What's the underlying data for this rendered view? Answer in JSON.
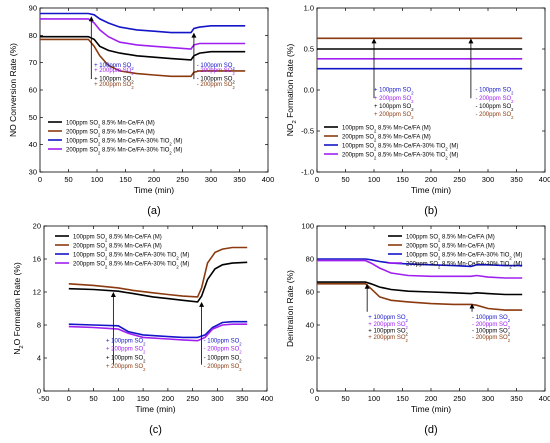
{
  "chart_data": [
    {
      "id": "a",
      "panel_label": "(a)",
      "type": "line",
      "title": "",
      "xlabel": "Time (min)",
      "ylabel": "NO Conversion Rate (%)",
      "xlim": [
        0,
        400
      ],
      "ylim": [
        30,
        90
      ],
      "xticks": [
        0,
        50,
        100,
        150,
        200,
        250,
        300,
        350,
        400
      ],
      "yticks": [
        30,
        40,
        50,
        60,
        70,
        80,
        90
      ],
      "grid": false,
      "series": [
        {
          "name": "100ppm SO₂ 8.5% Mn-Ce/FA (M)",
          "color": "#000000",
          "x": [
            0,
            85,
            95,
            105,
            120,
            140,
            170,
            200,
            230,
            265,
            270,
            280,
            300,
            360
          ],
          "y": [
            79.5,
            79.5,
            78.5,
            76.0,
            74.5,
            73.5,
            72.5,
            72.0,
            71.5,
            71.0,
            72.5,
            73.5,
            74.0,
            74.0
          ]
        },
        {
          "name": "200ppm SO₂ 8.5% Mn-Ce/FA (M)",
          "color": "#8b3a0f",
          "x": [
            0,
            85,
            95,
            105,
            120,
            140,
            170,
            200,
            230,
            265,
            270,
            280,
            300,
            360
          ],
          "y": [
            78.5,
            78.5,
            76.0,
            72.5,
            69.0,
            67.0,
            66.0,
            65.5,
            65.0,
            65.0,
            66.5,
            67.0,
            67.0,
            67.0
          ]
        },
        {
          "name": "100ppm SO₂ 8.5% Mn-Ce/FA-30% TiO₂ (M)",
          "color": "#1515c8",
          "x": [
            0,
            85,
            95,
            105,
            120,
            140,
            170,
            200,
            230,
            265,
            270,
            280,
            300,
            360
          ],
          "y": [
            88.0,
            88.0,
            87.5,
            86.0,
            84.5,
            83.0,
            82.0,
            81.5,
            81.0,
            81.0,
            82.5,
            83.0,
            83.5,
            83.5
          ]
        },
        {
          "name": "200ppm SO₂ 8.5% Mn-Ce/FA-30% TiO₂ (M)",
          "color": "#a020f0",
          "x": [
            0,
            85,
            95,
            105,
            120,
            140,
            170,
            200,
            230,
            265,
            270,
            280,
            300,
            360
          ],
          "y": [
            86.0,
            86.0,
            84.5,
            82.0,
            79.5,
            77.5,
            76.5,
            76.0,
            75.5,
            75.0,
            76.5,
            77.0,
            77.0,
            77.0
          ]
        }
      ],
      "arrows": [
        {
          "x": 90,
          "y0": 64,
          "y1": 87
        },
        {
          "x": 270,
          "y0": 64,
          "y1": 81
        }
      ],
      "annotations_left": [
        {
          "text": "+ 100ppm SO₂",
          "color": "#1515c8",
          "x": 95,
          "y": 68.5
        },
        {
          "text": "+ 200ppm SO₂",
          "color": "#a020f0",
          "x": 95,
          "y": 66.5
        },
        {
          "text": "+ 100ppm SO₂",
          "color": "#000000",
          "x": 95,
          "y": 63.5
        },
        {
          "text": "+ 200ppm SO₂",
          "color": "#8b3a0f",
          "x": 95,
          "y": 61.5
        }
      ],
      "annotations_right": [
        {
          "text": "- 100ppm SO₂",
          "color": "#1515c8",
          "x": 275,
          "y": 68.5
        },
        {
          "text": "- 200ppm SO₂",
          "color": "#a020f0",
          "x": 275,
          "y": 66.5
        },
        {
          "text": "- 100ppm SO₂",
          "color": "#000000",
          "x": 275,
          "y": 63.5
        },
        {
          "text": "- 200ppm SO₂",
          "color": "#8b3a0f",
          "x": 275,
          "y": 61.5
        }
      ],
      "legend_pos": "lower-left"
    },
    {
      "id": "b",
      "panel_label": "(b)",
      "type": "line",
      "title": "",
      "xlabel": "Time (min)",
      "ylabel": "NO₂ Formation Rate (%)",
      "xlim": [
        0,
        400
      ],
      "ylim": [
        -1.0,
        1.0
      ],
      "xticks": [
        0,
        50,
        100,
        150,
        200,
        250,
        300,
        350,
        400
      ],
      "yticks": [
        -1.0,
        -0.5,
        0.0,
        0.5,
        1.0
      ],
      "grid": false,
      "series": [
        {
          "name": "100ppm SO₂ 8.5% Mn-Ce/FA (M)",
          "color": "#000000",
          "x": [
            0,
            360
          ],
          "y": [
            0.5,
            0.5
          ]
        },
        {
          "name": "200ppm SO₂ 8.5% Mn-Ce/FA (M)",
          "color": "#8b3a0f",
          "x": [
            0,
            360
          ],
          "y": [
            0.63,
            0.63
          ]
        },
        {
          "name": "100ppm SO₂ 8.5% Mn-Ce/FA-30% TiO₂ (M)",
          "color": "#1515c8",
          "x": [
            0,
            360
          ],
          "y": [
            0.26,
            0.26
          ]
        },
        {
          "name": "200ppm SO₂ 8.5% Mn-Ce/FA-30% TiO₂ (M)",
          "color": "#a020f0",
          "x": [
            0,
            360
          ],
          "y": [
            0.38,
            0.38
          ]
        }
      ],
      "arrows": [
        {
          "x": 100,
          "y0": -0.1,
          "y1": 0.63
        },
        {
          "x": 270,
          "y0": -0.1,
          "y1": 0.63
        }
      ],
      "annotations_left": [
        {
          "text": "+ 100ppm SO₂",
          "color": "#1515c8",
          "x": 100,
          "y": -0.02
        },
        {
          "text": "+ 200ppm SO₂",
          "color": "#a020f0",
          "x": 100,
          "y": -0.12
        },
        {
          "text": "+ 100ppm SO₂",
          "color": "#000000",
          "x": 100,
          "y": -0.22
        },
        {
          "text": "+ 200ppm SO₂",
          "color": "#8b3a0f",
          "x": 100,
          "y": -0.32
        }
      ],
      "annotations_right": [
        {
          "text": "- 100ppm SO₂",
          "color": "#1515c8",
          "x": 278,
          "y": -0.02
        },
        {
          "text": "- 200ppm SO₂",
          "color": "#a020f0",
          "x": 278,
          "y": -0.12
        },
        {
          "text": "- 100ppm SO₂",
          "color": "#000000",
          "x": 278,
          "y": -0.22
        },
        {
          "text": "- 200ppm SO₂",
          "color": "#8b3a0f",
          "x": 278,
          "y": -0.32
        }
      ],
      "legend_pos": "lower-left"
    },
    {
      "id": "c",
      "panel_label": "(c)",
      "type": "line",
      "title": "",
      "xlabel": "Time (min)",
      "ylabel": "N₂O Formation Rate (%)",
      "xlim": [
        -50,
        400
      ],
      "ylim": [
        0,
        20
      ],
      "xticks": [
        -50,
        0,
        50,
        100,
        150,
        200,
        250,
        300,
        350,
        400
      ],
      "yticks": [
        0,
        4,
        8,
        12,
        16,
        20
      ],
      "grid": false,
      "series": [
        {
          "name": "100ppm SO₂ 8.5% Mn-Ce/FA (M)",
          "color": "#000000",
          "x": [
            0,
            50,
            100,
            130,
            170,
            200,
            230,
            260,
            268,
            280,
            295,
            310,
            330,
            360
          ],
          "y": [
            12.4,
            12.3,
            12.1,
            11.8,
            11.4,
            11.2,
            11.0,
            10.8,
            11.5,
            13.5,
            14.8,
            15.3,
            15.5,
            15.6
          ]
        },
        {
          "name": "200ppm SO₂ 8.5% Mn-Ce/FA (M)",
          "color": "#8b3a0f",
          "x": [
            0,
            50,
            100,
            130,
            170,
            200,
            230,
            260,
            268,
            280,
            295,
            310,
            330,
            360
          ],
          "y": [
            13.0,
            12.8,
            12.5,
            12.2,
            11.9,
            11.7,
            11.5,
            11.4,
            12.5,
            15.5,
            16.8,
            17.2,
            17.4,
            17.4
          ]
        },
        {
          "name": "100ppm SO₂ 8.5% Mn-Ce/FA-30% TiO₂ (M)",
          "color": "#1515c8",
          "x": [
            0,
            50,
            100,
            120,
            150,
            200,
            230,
            260,
            275,
            290,
            310,
            330,
            360
          ],
          "y": [
            8.1,
            8.0,
            7.9,
            7.2,
            6.8,
            6.6,
            6.5,
            6.5,
            6.8,
            7.7,
            8.3,
            8.4,
            8.4
          ]
        },
        {
          "name": "200ppm SO₂ 8.5% Mn-Ce/FA-30% TiO₂ (M)",
          "color": "#a020f0",
          "x": [
            0,
            50,
            100,
            120,
            150,
            200,
            230,
            260,
            275,
            290,
            310,
            330,
            360
          ],
          "y": [
            7.8,
            7.7,
            7.5,
            7.0,
            6.5,
            6.3,
            6.2,
            6.1,
            6.5,
            7.5,
            8.0,
            8.1,
            8.1
          ]
        }
      ],
      "arrows": [
        {
          "x": 90,
          "y0": 3.2,
          "y1": 12.0
        },
        {
          "x": 268,
          "y0": 3.2,
          "y1": 10.8
        }
      ],
      "annotations_left": [
        {
          "text": "+ 100ppm SO₂",
          "color": "#1515c8",
          "x": 75,
          "y": 5.9
        },
        {
          "text": "+ 200ppm SO₂",
          "color": "#a020f0",
          "x": 75,
          "y": 4.9
        },
        {
          "text": "+ 100ppm SO₂",
          "color": "#000000",
          "x": 75,
          "y": 3.8
        },
        {
          "text": "+ 200ppm SO₂",
          "color": "#8b3a0f",
          "x": 75,
          "y": 2.8
        }
      ],
      "annotations_right": [
        {
          "text": "- 100ppm SO₂",
          "color": "#1515c8",
          "x": 272,
          "y": 5.9
        },
        {
          "text": "- 200ppm SO₂",
          "color": "#a020f0",
          "x": 272,
          "y": 4.9
        },
        {
          "text": "- 100ppm SO₂",
          "color": "#000000",
          "x": 272,
          "y": 3.8
        },
        {
          "text": "- 200ppm SO₂",
          "color": "#8b3a0f",
          "x": 272,
          "y": 2.8
        }
      ],
      "legend_pos": "top-left"
    },
    {
      "id": "d",
      "panel_label": "(d)",
      "type": "line",
      "title": "",
      "xlabel": "Time (min)",
      "ylabel": "Denitration Rate (%)",
      "xlim": [
        0,
        400
      ],
      "ylim": [
        0,
        100
      ],
      "xticks": [
        0,
        50,
        100,
        150,
        200,
        250,
        300,
        350,
        400
      ],
      "yticks": [
        0,
        20,
        40,
        60,
        80,
        100
      ],
      "grid": false,
      "series": [
        {
          "name": "100ppm SO₂ 8.5% Mn-Ce/FA (M)",
          "color": "#000000",
          "x": [
            0,
            85,
            95,
            110,
            130,
            160,
            200,
            240,
            270,
            280,
            300,
            330,
            360
          ],
          "y": [
            66.0,
            66.0,
            65.0,
            63.0,
            61.5,
            60.5,
            60.0,
            59.5,
            59.0,
            59.5,
            59.0,
            58.5,
            58.5
          ]
        },
        {
          "name": "200ppm SO₂ 8.5% Mn-Ce/FA (M)",
          "color": "#8b3a0f",
          "x": [
            0,
            85,
            95,
            110,
            130,
            160,
            200,
            240,
            270,
            280,
            300,
            330,
            360
          ],
          "y": [
            65.0,
            65.0,
            62.0,
            57.0,
            55.0,
            54.0,
            53.0,
            52.5,
            52.5,
            52.0,
            50.0,
            49.0,
            49.0
          ]
        },
        {
          "name": "100ppm SO₂ 8.5% Mn-Ce/FA-30% TiO₂ (M)",
          "color": "#1515c8",
          "x": [
            0,
            85,
            95,
            110,
            130,
            160,
            200,
            240,
            270,
            280,
            300,
            330,
            360
          ],
          "y": [
            80.0,
            80.0,
            79.5,
            78.5,
            77.5,
            77.0,
            76.5,
            76.0,
            75.5,
            76.5,
            76.5,
            76.0,
            76.0
          ]
        },
        {
          "name": "200ppm SO₂ 8.5% Mn-Ce/FA-30% TiO₂ (M)",
          "color": "#a020f0",
          "x": [
            0,
            85,
            95,
            110,
            130,
            160,
            200,
            240,
            270,
            280,
            300,
            330,
            360
          ],
          "y": [
            79.0,
            79.0,
            77.5,
            74.5,
            71.5,
            70.0,
            69.5,
            69.5,
            69.5,
            70.0,
            69.0,
            68.5,
            68.5
          ]
        }
      ],
      "arrows": [
        {
          "x": 88,
          "y0": 48,
          "y1": 65
        },
        {
          "x": 272,
          "y0": 48,
          "y1": 53
        }
      ],
      "annotations_left": [
        {
          "text": "+ 100ppm SO₂",
          "color": "#1515c8",
          "x": 90,
          "y": 43.5
        },
        {
          "text": "+ 200ppm SO₂",
          "color": "#a020f0",
          "x": 90,
          "y": 39.5
        },
        {
          "text": "+ 100ppm SO₂",
          "color": "#000000",
          "x": 90,
          "y": 35.5
        },
        {
          "text": "+ 200ppm SO₂",
          "color": "#8b3a0f",
          "x": 90,
          "y": 31.5
        }
      ],
      "annotations_right": [
        {
          "text": "- 100ppm SO₂",
          "color": "#1515c8",
          "x": 272,
          "y": 43.5
        },
        {
          "text": "- 200ppm SO₂",
          "color": "#a020f0",
          "x": 272,
          "y": 39.5
        },
        {
          "text": "- 100ppm SO₂",
          "color": "#000000",
          "x": 272,
          "y": 35.5
        },
        {
          "text": "- 200ppm SO₂",
          "color": "#8b3a0f",
          "x": 272,
          "y": 31.5
        }
      ],
      "legend_pos": "top-right"
    }
  ]
}
